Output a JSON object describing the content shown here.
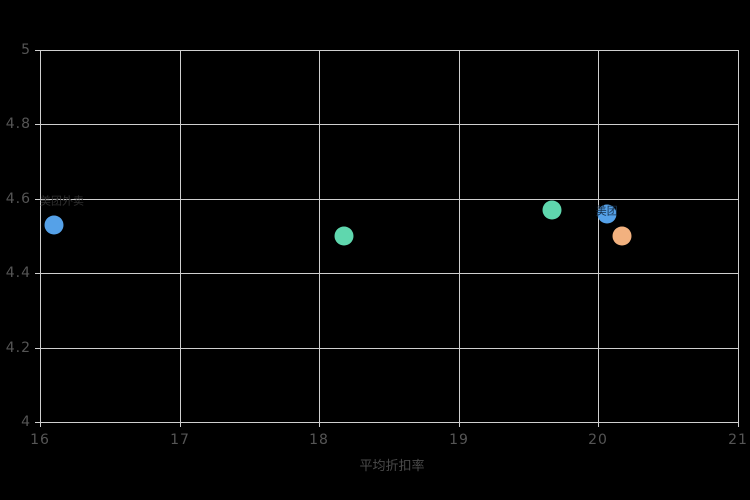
{
  "chart_data": {
    "type": "scatter",
    "title": "",
    "xlabel": "平均折扣率",
    "ylabel": "",
    "xlim": [
      16,
      21
    ],
    "ylim": [
      4,
      5
    ],
    "grid": true,
    "background": "#000000",
    "gridline_color": "#cfcfcf",
    "tick_label_color": "#555555",
    "x_ticks": [
      "16",
      "17",
      "18",
      "19",
      "20",
      "21"
    ],
    "y_ticks": [
      "4",
      "4.2",
      "4.4",
      "4.6",
      "4.8",
      "5"
    ],
    "series": [
      {
        "name": "blue-series",
        "color": "#55a1e8",
        "points": [
          {
            "x": 16.1,
            "y": 4.53
          },
          {
            "x": 20.06,
            "y": 4.56
          }
        ]
      },
      {
        "name": "green-series",
        "color": "#5fd7ae",
        "points": [
          {
            "x": 18.18,
            "y": 4.5
          },
          {
            "x": 19.67,
            "y": 4.57
          }
        ]
      },
      {
        "name": "orange-series",
        "color": "#f2b17f",
        "points": [
          {
            "x": 20.17,
            "y": 4.5
          }
        ]
      }
    ],
    "annotations": [
      {
        "text": "美团外卖",
        "x": 16.0,
        "y": 4.595,
        "color": "#2e2e2e",
        "anchor": "left"
      },
      {
        "text": "美团",
        "x": 20.06,
        "y": 4.567,
        "color": "#17314d",
        "anchor": "center"
      }
    ]
  }
}
